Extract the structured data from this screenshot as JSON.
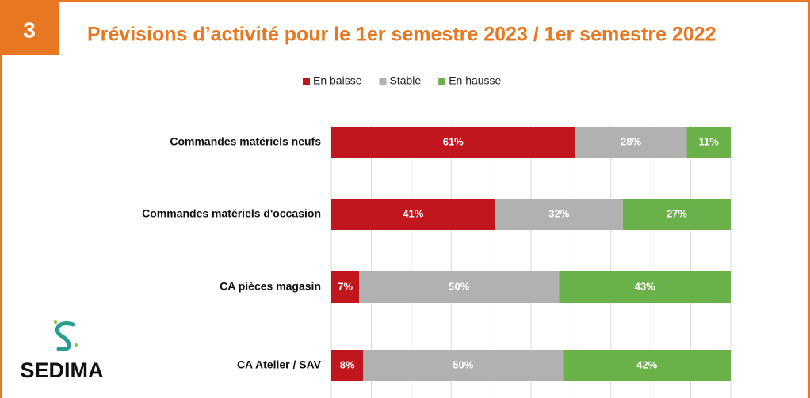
{
  "chart_data": {
    "type": "stacked_barh",
    "section_number": "3",
    "title": "Prévisions d’activité pour le 1er semestre 2023 / 1er semestre 2022",
    "logo": "SEDIMA",
    "categories": [
      "Commandes matériels neufs",
      "Commandes matériels d'occasion",
      "CA pièces magasin",
      "CA Atelier / SAV"
    ],
    "series": [
      {
        "name": "En baisse",
        "color": "#c1161d",
        "values": [
          61,
          41,
          7,
          8
        ],
        "value_labels": [
          "61%",
          "41%",
          "7%",
          "8%"
        ]
      },
      {
        "name": "Stable",
        "color": "#b1b1b1",
        "values": [
          28,
          32,
          50,
          50
        ],
        "value_labels": [
          "28%",
          "32%",
          "50%",
          "50%"
        ]
      },
      {
        "name": "En hausse",
        "color": "#6bb14a",
        "values": [
          11,
          27,
          43,
          42
        ],
        "value_labels": [
          "11%",
          "27%",
          "43%",
          "42%"
        ]
      }
    ],
    "xlim": [
      0,
      100
    ],
    "xticks": [
      0,
      10,
      20,
      30,
      40,
      50,
      60,
      70,
      80,
      90,
      100
    ],
    "grid": true,
    "legend": "top"
  }
}
